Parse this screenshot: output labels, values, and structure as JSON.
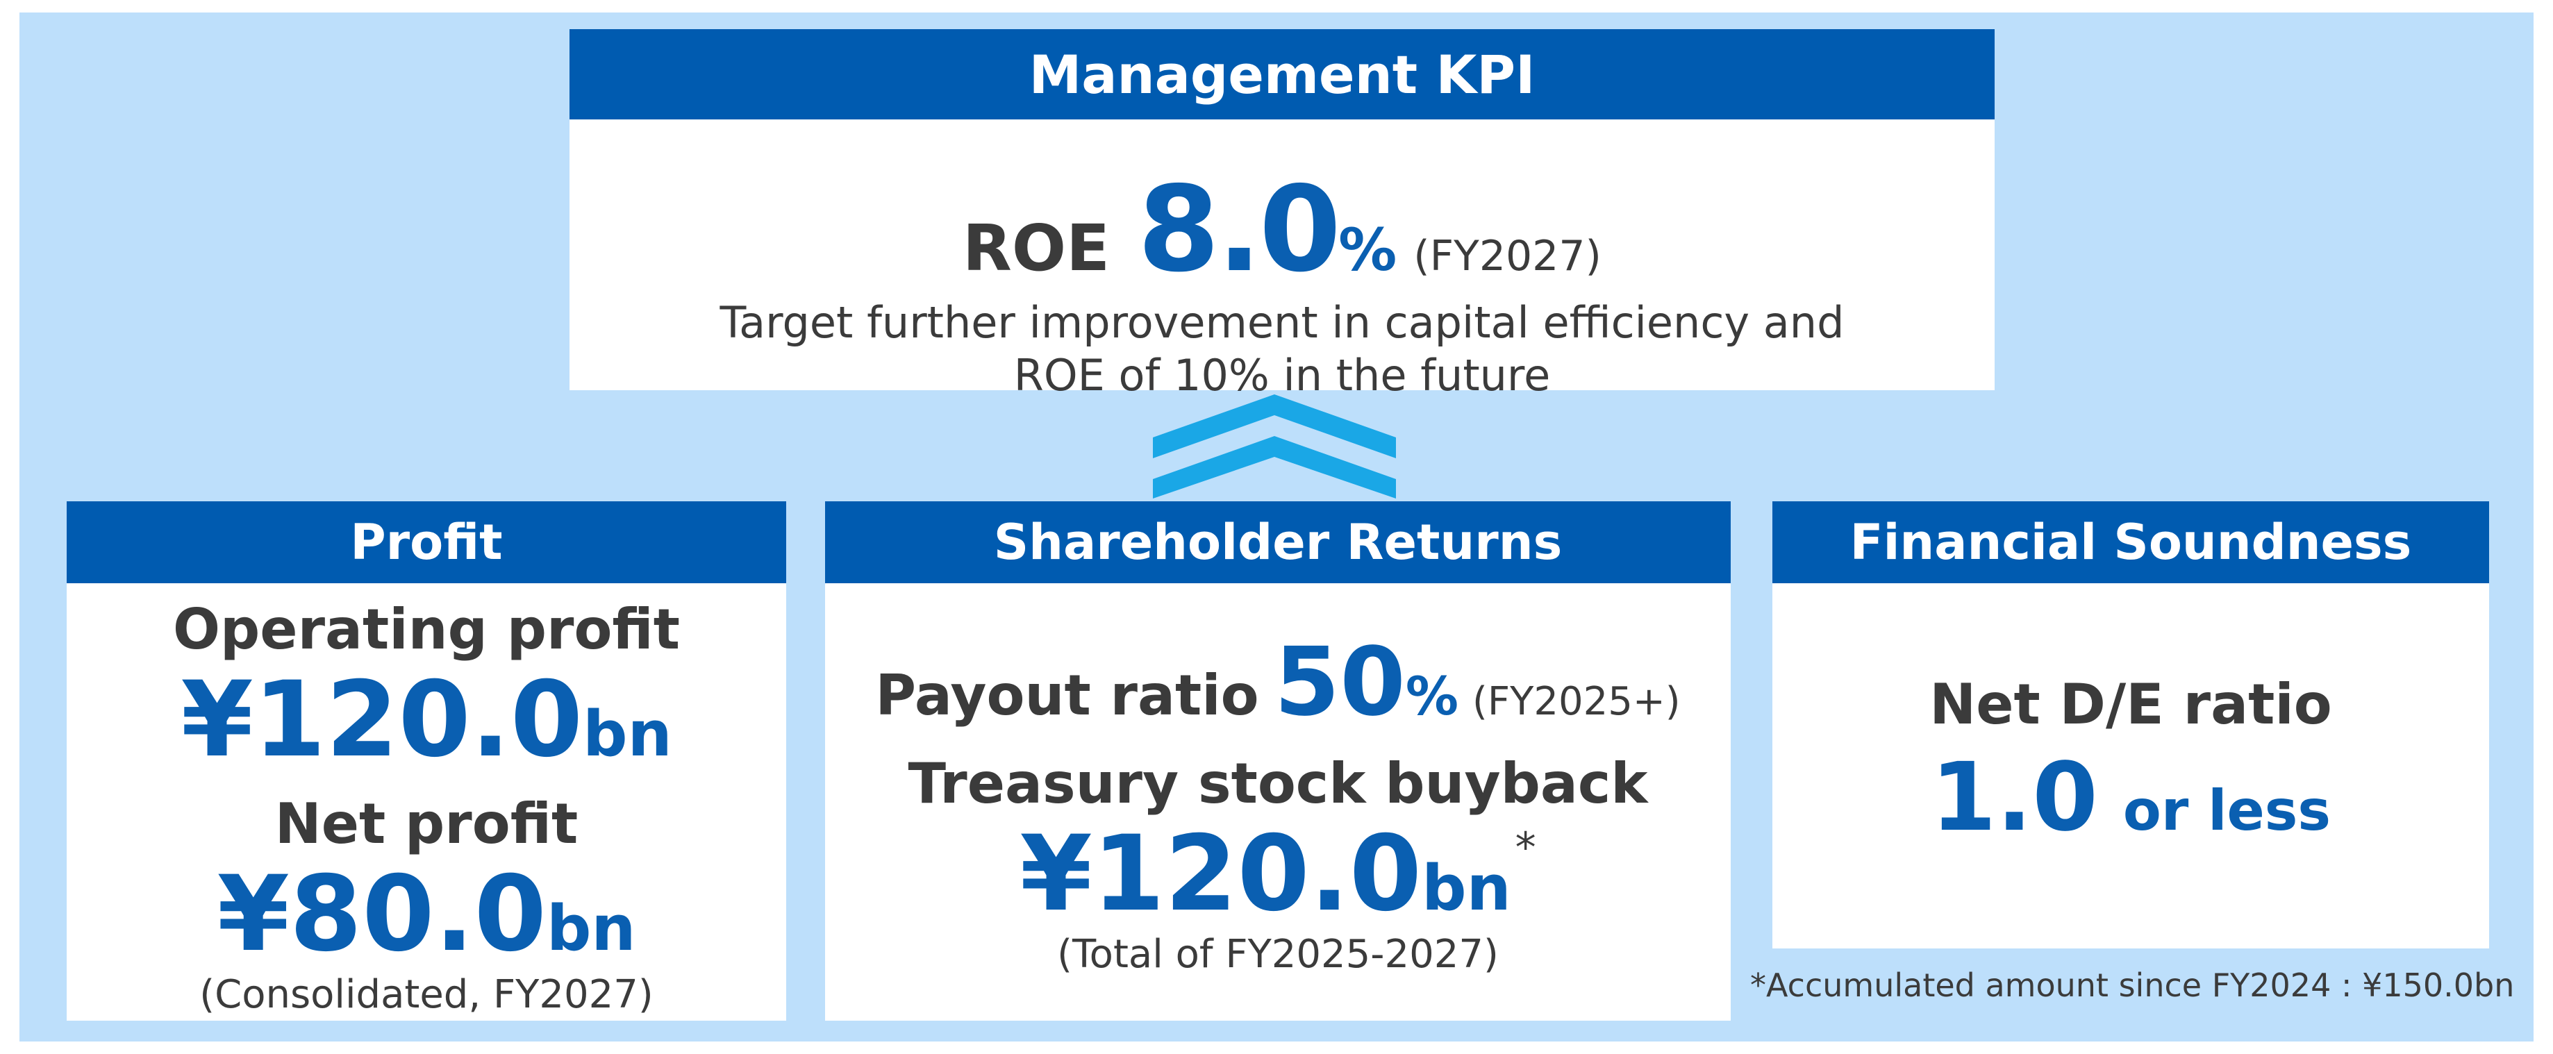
{
  "kpi": {
    "title": "Management KPI",
    "roe_label": "ROE",
    "roe_value": "8.0",
    "roe_unit": "%",
    "roe_period": "(FY2027)",
    "desc_line1": "Target further improvement in capital efficiency and",
    "desc_line2": "ROE of 10% in the future"
  },
  "profit": {
    "title": "Profit",
    "operating_label": "Operating profit",
    "operating_value": "¥120.0",
    "operating_unit": "bn",
    "net_label": "Net profit",
    "net_value": "¥80.0",
    "net_unit": "bn",
    "note": "(Consolidated, FY2027)"
  },
  "shareholder": {
    "title": "Shareholder Returns",
    "payout_label": "Payout ratio",
    "payout_value": "50",
    "payout_unit": "%",
    "payout_period": "(FY2025+)",
    "buyback_label": "Treasury stock buyback",
    "buyback_value": "¥120.0",
    "buyback_unit": "bn",
    "buyback_mark": "*",
    "buyback_note": "(Total of FY2025-2027)"
  },
  "financial": {
    "title": "Financial Soundness",
    "de_label": "Net D/E ratio",
    "de_value": "1.0",
    "de_unit": "or less"
  },
  "footnote": "*Accumulated amount since FY2024 : ¥150.0bn",
  "colors": {
    "header_blue": "#005bb0",
    "value_blue": "#0a5fb1",
    "background": "#bddffb",
    "chevron": "#1aa7e6"
  },
  "icons": {
    "chevrons": "double-chevron-up-icon"
  }
}
